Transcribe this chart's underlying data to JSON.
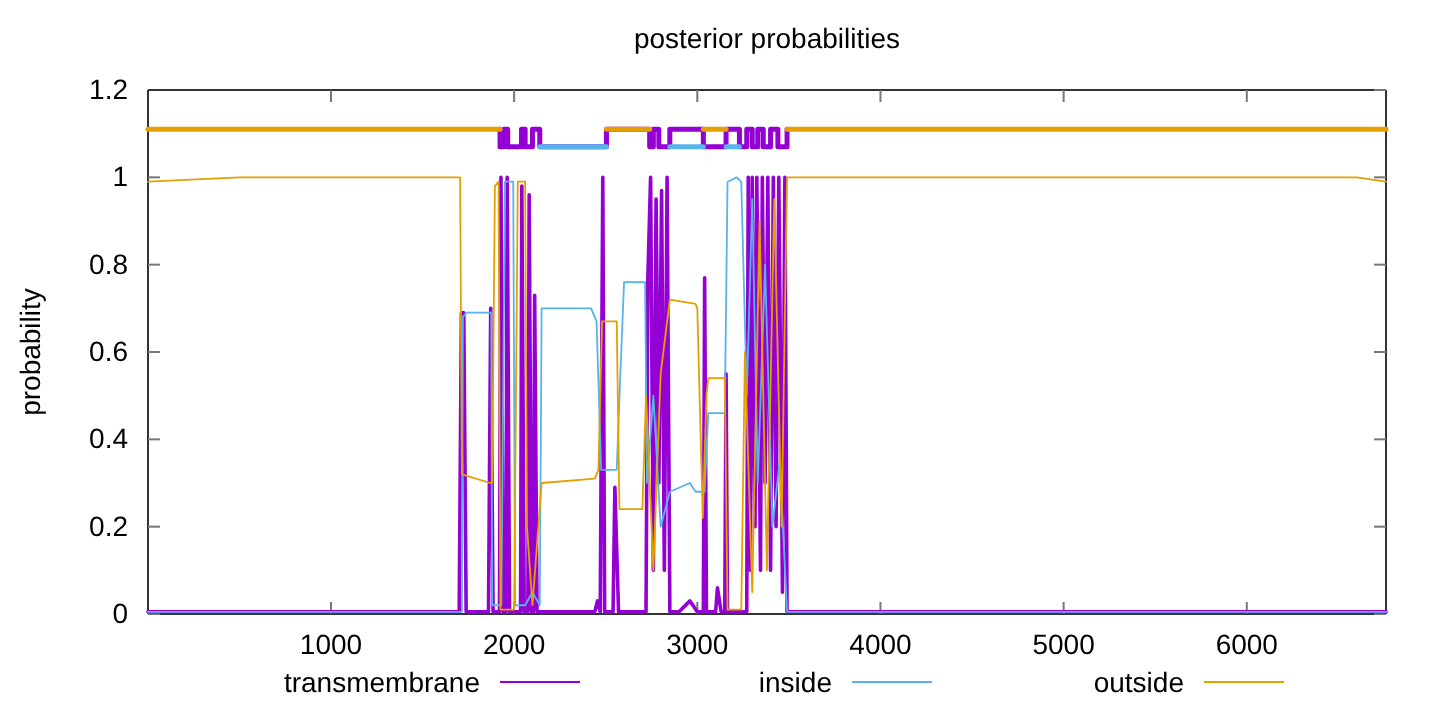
{
  "chart_data": {
    "type": "line",
    "title": "posterior probabilities",
    "ylabel": "probability",
    "xlim": [
      1,
      6760
    ],
    "ylim": [
      0,
      1.2
    ],
    "xticks": [
      1000,
      2000,
      3000,
      4000,
      5000,
      6000
    ],
    "yticks": [
      0,
      0.2,
      0.4,
      0.6,
      0.8,
      1,
      1.2
    ],
    "grid": false,
    "legend": "bottom",
    "series": [
      {
        "name": "transmembrane",
        "color": "#9400d3",
        "x": [
          1,
          1700,
          1712,
          1725,
          1738,
          1860,
          1872,
          1885,
          1920,
          1928,
          1940,
          1955,
          1962,
          1975,
          2035,
          2042,
          2055,
          2075,
          2082,
          2095,
          2105,
          2112,
          2125,
          2440,
          2455,
          2470,
          2484,
          2494,
          2540,
          2550,
          2570,
          2720,
          2730,
          2745,
          2760,
          2775,
          2790,
          2805,
          2820,
          2835,
          2850,
          2900,
          2960,
          3000,
          3033,
          3040,
          3050,
          3100,
          3110,
          3130,
          3150,
          3157,
          3165,
          3270,
          3278,
          3290,
          3300,
          3315,
          3325,
          3345,
          3355,
          3370,
          3385,
          3400,
          3415,
          3430,
          3445,
          3465,
          3478,
          3490,
          6760
        ],
        "values": [
          0.005,
          0.005,
          0.69,
          0.69,
          0.005,
          0.005,
          0.7,
          0.005,
          0.005,
          1,
          0.005,
          0.005,
          1,
          0.005,
          0.005,
          0.98,
          0.005,
          0.005,
          0.96,
          0.005,
          0.005,
          0.73,
          0.005,
          0.005,
          0.03,
          0.005,
          1,
          0.005,
          0.005,
          0.29,
          0.005,
          0.005,
          0.77,
          1,
          0.1,
          0.95,
          0.3,
          0.97,
          0.1,
          1,
          0.005,
          0.005,
          0.03,
          0.005,
          0.005,
          0.77,
          0.005,
          0.005,
          0.06,
          0.005,
          0.005,
          0.55,
          0.005,
          0.005,
          1,
          0.1,
          1,
          0.2,
          1,
          0.1,
          1,
          0.3,
          1,
          0.1,
          1,
          0.2,
          1,
          0.05,
          1,
          0.005,
          0.005
        ]
      },
      {
        "name": "inside",
        "color": "#56b4e9",
        "x": [
          1,
          1715,
          1720,
          1740,
          1875,
          1880,
          1930,
          1950,
          1995,
          2005,
          2060,
          2100,
          2140,
          2150,
          2420,
          2450,
          2475,
          2560,
          2580,
          2600,
          2715,
          2725,
          2760,
          2800,
          2850,
          2960,
          2990,
          3040,
          3060,
          3150,
          3165,
          3215,
          3240,
          3270,
          3300,
          3330,
          3370,
          3410,
          3450,
          3490,
          6760
        ],
        "values": [
          0.005,
          0.005,
          0.68,
          0.69,
          0.69,
          0.02,
          0.02,
          0.99,
          0.99,
          0.02,
          0.02,
          0.05,
          0.02,
          0.7,
          0.7,
          0.67,
          0.33,
          0.33,
          0.55,
          0.76,
          0.76,
          0.3,
          0.5,
          0.2,
          0.28,
          0.3,
          0.28,
          0.28,
          0.46,
          0.46,
          0.99,
          1,
          0.99,
          0.5,
          0.95,
          0.3,
          0.8,
          0.2,
          0.35,
          0.005,
          0.005
        ]
      },
      {
        "name": "outside",
        "color": "#e69f00",
        "x": [
          1,
          500,
          1705,
          1715,
          1870,
          1880,
          1895,
          1915,
          1925,
          2000,
          2020,
          2060,
          2070,
          2100,
          2150,
          2440,
          2460,
          2480,
          2560,
          2575,
          2700,
          2720,
          2760,
          2800,
          2850,
          2990,
          3000,
          3030,
          3050,
          3060,
          3150,
          3165,
          3240,
          3260,
          3300,
          3340,
          3380,
          3420,
          3460,
          3490,
          3800,
          6600,
          6760
        ],
        "values": [
          0.99,
          1,
          1,
          0.32,
          0.3,
          0.3,
          0.98,
          0.99,
          0.01,
          0.01,
          0.99,
          0.99,
          0.2,
          0.02,
          0.3,
          0.31,
          0.33,
          0.67,
          0.67,
          0.24,
          0.24,
          0.5,
          0.1,
          0.55,
          0.72,
          0.71,
          0.7,
          0.22,
          0.5,
          0.54,
          0.54,
          0.01,
          0.01,
          0.6,
          0.05,
          0.9,
          0.1,
          0.95,
          0.2,
          1,
          1,
          1,
          0.99
        ]
      },
      {
        "color": "#9400d3",
        "x": [
          1923,
          1923,
          1945,
          1945,
          1965,
          1965,
          2040,
          2040,
          2060,
          2060,
          2100,
          2100,
          2140,
          2140,
          2504,
          2504,
          2740,
          2740,
          2760,
          2760,
          2790,
          2790,
          2850,
          2850,
          3033,
          3033,
          3157,
          3157,
          3230,
          3230,
          3270,
          3270,
          3300,
          3300,
          3330,
          3330,
          3360,
          3360,
          3400,
          3400,
          3440,
          3440,
          3490,
          3490
        ],
        "values": [
          1.11,
          1.07,
          1.07,
          1.11,
          1.11,
          1.07,
          1.07,
          1.11,
          1.11,
          1.07,
          1.07,
          1.11,
          1.11,
          1.07,
          1.07,
          1.11,
          1.11,
          1.07,
          1.07,
          1.11,
          1.11,
          1.07,
          1.07,
          1.11,
          1.11,
          1.07,
          1.07,
          1.11,
          1.11,
          1.07,
          1.07,
          1.11,
          1.11,
          1.07,
          1.07,
          1.11,
          1.11,
          1.07,
          1.07,
          1.11,
          1.11,
          1.07,
          1.07,
          1.11
        ]
      },
      {
        "color": "#e69f00",
        "x": [
          1,
          1923
        ],
        "values": [
          1.11,
          1.11
        ]
      },
      {
        "color": "#e69f00",
        "x": [
          2504,
          2740
        ],
        "values": [
          1.11,
          1.11
        ]
      },
      {
        "color": "#e69f00",
        "x": [
          3033,
          3157
        ],
        "values": [
          1.11,
          1.11
        ]
      },
      {
        "color": "#e69f00",
        "x": [
          3490,
          6760
        ],
        "values": [
          1.11,
          1.11
        ]
      },
      {
        "color": "#56b4e9",
        "x": [
          2140,
          2504
        ],
        "values": [
          1.07,
          1.07
        ]
      },
      {
        "color": "#56b4e9",
        "x": [
          2850,
          3033
        ],
        "values": [
          1.07,
          1.07
        ]
      },
      {
        "color": "#56b4e9",
        "x": [
          3157,
          3230
        ],
        "values": [
          1.07,
          1.07
        ]
      }
    ]
  }
}
